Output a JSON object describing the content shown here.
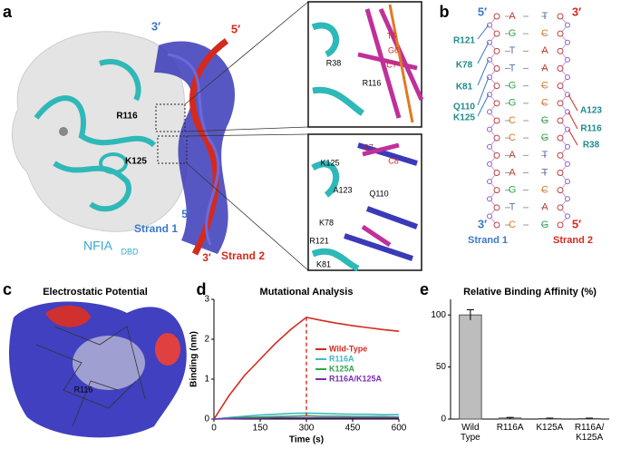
{
  "panel_labels": [
    "a",
    "b",
    "c",
    "d",
    "e"
  ],
  "structure": {
    "labels": [
      "3′",
      "5′",
      "R116",
      "K125",
      "5′",
      "Strand 1",
      "3′",
      "Strand 2",
      "NFIA",
      "DBD"
    ],
    "inset_top": [
      "R38",
      "T5",
      "G6",
      "C7",
      "R116"
    ],
    "inset_bottom": [
      "C7",
      "C8",
      "K125",
      "A123",
      "Q110",
      "K78",
      "R121",
      "K81"
    ]
  },
  "dna": {
    "top_left": "5′",
    "top_right": "3′",
    "pairs": [
      [
        "A",
        "T"
      ],
      [
        "G",
        "C"
      ],
      [
        "T",
        "A"
      ],
      [
        "T",
        "A"
      ],
      [
        "G",
        "C"
      ],
      [
        "G",
        "C"
      ],
      [
        "C",
        "G"
      ],
      [
        "C",
        "G"
      ],
      [
        "A",
        "T"
      ],
      [
        "A",
        "T"
      ],
      [
        "G",
        "C"
      ],
      [
        "T",
        "A"
      ],
      [
        "C",
        "G"
      ]
    ],
    "left_residues": [
      "R121",
      "K78",
      "K81",
      "Q110",
      "K125"
    ],
    "right_residues": [
      "A123",
      "R116",
      "R38"
    ],
    "bottom_left": "3′",
    "bottom_right": "5′",
    "strand1": "Strand 1",
    "strand2": "Strand 2"
  },
  "electrostatic": {
    "title": "Electrostatic Potential",
    "label": "R116"
  },
  "chart_data": [
    {
      "type": "line",
      "title": "Mutational Analysis",
      "xlabel": "Time (s)",
      "ylabel": "Binding (nm)",
      "x": [
        0,
        50,
        100,
        150,
        200,
        250,
        300,
        350,
        400,
        450,
        500,
        550,
        600
      ],
      "series": [
        {
          "name": "Wild-Type",
          "color": "#d42a1e",
          "values": [
            0,
            0.6,
            1.1,
            1.5,
            1.9,
            2.25,
            2.55,
            2.47,
            2.4,
            2.34,
            2.29,
            2.24,
            2.2
          ]
        },
        {
          "name": "R116A",
          "color": "#3fb8c8",
          "values": [
            0,
            0.04,
            0.07,
            0.1,
            0.12,
            0.14,
            0.15,
            0.14,
            0.13,
            0.12,
            0.12,
            0.11,
            0.11
          ]
        },
        {
          "name": "K125A",
          "color": "#2fa84a",
          "values": [
            0,
            0.02,
            0.04,
            0.05,
            0.06,
            0.07,
            0.08,
            0.07,
            0.07,
            0.06,
            0.06,
            0.06,
            0.05
          ]
        },
        {
          "name": "R116A/K125A",
          "color": "#7a2fb0",
          "values": [
            0,
            0.01,
            0.02,
            0.02,
            0.03,
            0.03,
            0.03,
            0.03,
            0.03,
            0.03,
            0.03,
            0.03,
            0.03
          ]
        }
      ],
      "xlim": [
        0,
        600
      ],
      "xticks": [
        0,
        150,
        300,
        450,
        600
      ],
      "ylim": [
        0,
        3
      ],
      "yticks": [
        0,
        1,
        2,
        3
      ],
      "marker_x": 300
    },
    {
      "type": "bar",
      "title": "Relative Binding Affinity (%)",
      "categories": [
        "Wild\nType",
        "R116A",
        "K125A",
        "R116A/\nK125A"
      ],
      "values": [
        100,
        1,
        0.5,
        0.5
      ],
      "errors": [
        5,
        0.6,
        0.4,
        0.4
      ],
      "color": "#bdbdbd",
      "ylim": [
        0,
        115
      ],
      "yticks": [
        0,
        50,
        100
      ]
    }
  ]
}
